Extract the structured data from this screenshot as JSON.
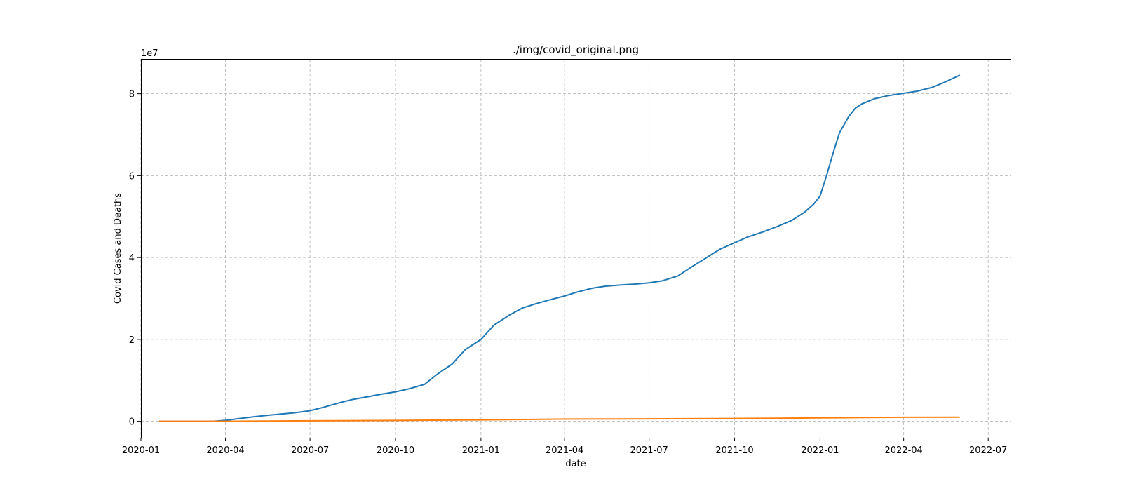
{
  "figure": {
    "title": "./img/covid_original.png",
    "offset_label": "1e7"
  },
  "chart_data": {
    "type": "line",
    "title": "./img/covid_original.png",
    "xlabel": "date",
    "ylabel": "Covid Cases and Deaths",
    "y_scale_factor": 10000000,
    "y_offset_text": "1e7",
    "xlim": [
      "2020-01-01",
      "2022-07-25"
    ],
    "ylim": [
      -4000000,
      88500000
    ],
    "grid": true,
    "grid_style": "dashed",
    "x_ticks": [
      "2020-01",
      "2020-04",
      "2020-07",
      "2020-10",
      "2021-01",
      "2021-04",
      "2021-07",
      "2021-10",
      "2022-01",
      "2022-04",
      "2022-07"
    ],
    "y_ticks": [
      0,
      20000000,
      40000000,
      60000000,
      80000000
    ],
    "y_tick_labels": [
      "0",
      "2",
      "4",
      "6",
      "8"
    ],
    "series": [
      {
        "color": "#1f77b4",
        "points": [
          [
            "2020-01-21",
            0
          ],
          [
            "2020-03-01",
            100
          ],
          [
            "2020-03-20",
            20000
          ],
          [
            "2020-04-01",
            250000
          ],
          [
            "2020-04-15",
            650000
          ],
          [
            "2020-05-01",
            1100000
          ],
          [
            "2020-05-15",
            1450000
          ],
          [
            "2020-06-01",
            1800000
          ],
          [
            "2020-06-15",
            2100000
          ],
          [
            "2020-07-01",
            2600000
          ],
          [
            "2020-07-15",
            3400000
          ],
          [
            "2020-08-01",
            4500000
          ],
          [
            "2020-08-15",
            5300000
          ],
          [
            "2020-09-01",
            6000000
          ],
          [
            "2020-09-15",
            6600000
          ],
          [
            "2020-10-01",
            7200000
          ],
          [
            "2020-10-15",
            7900000
          ],
          [
            "2020-11-01",
            9000000
          ],
          [
            "2020-11-15",
            11500000
          ],
          [
            "2020-12-01",
            14000000
          ],
          [
            "2020-12-15",
            17500000
          ],
          [
            "2021-01-01",
            20000000
          ],
          [
            "2021-01-15",
            23500000
          ],
          [
            "2021-02-01",
            26000000
          ],
          [
            "2021-02-15",
            27700000
          ],
          [
            "2021-03-01",
            28700000
          ],
          [
            "2021-03-15",
            29600000
          ],
          [
            "2021-04-01",
            30600000
          ],
          [
            "2021-04-15",
            31600000
          ],
          [
            "2021-05-01",
            32500000
          ],
          [
            "2021-05-15",
            33000000
          ],
          [
            "2021-06-01",
            33300000
          ],
          [
            "2021-06-15",
            33500000
          ],
          [
            "2021-07-01",
            33800000
          ],
          [
            "2021-07-15",
            34300000
          ],
          [
            "2021-08-01",
            35500000
          ],
          [
            "2021-08-15",
            37600000
          ],
          [
            "2021-09-01",
            40000000
          ],
          [
            "2021-09-15",
            42000000
          ],
          [
            "2021-10-01",
            43600000
          ],
          [
            "2021-10-15",
            45000000
          ],
          [
            "2021-11-01",
            46300000
          ],
          [
            "2021-11-15",
            47500000
          ],
          [
            "2021-12-01",
            49000000
          ],
          [
            "2021-12-15",
            51000000
          ],
          [
            "2021-12-25",
            53000000
          ],
          [
            "2022-01-01",
            55000000
          ],
          [
            "2022-01-08",
            60000000
          ],
          [
            "2022-01-15",
            65500000
          ],
          [
            "2022-01-22",
            70500000
          ],
          [
            "2022-02-01",
            74500000
          ],
          [
            "2022-02-08",
            76500000
          ],
          [
            "2022-02-15",
            77500000
          ],
          [
            "2022-03-01",
            78800000
          ],
          [
            "2022-03-15",
            79500000
          ],
          [
            "2022-04-01",
            80100000
          ],
          [
            "2022-04-15",
            80600000
          ],
          [
            "2022-05-01",
            81500000
          ],
          [
            "2022-05-15",
            82800000
          ],
          [
            "2022-05-31",
            84500000
          ]
        ]
      },
      {
        "color": "#ff7f0e",
        "points": [
          [
            "2020-01-21",
            0
          ],
          [
            "2020-04-01",
            5000
          ],
          [
            "2020-07-01",
            130000
          ],
          [
            "2020-10-01",
            210000
          ],
          [
            "2021-01-01",
            350000
          ],
          [
            "2021-04-01",
            555000
          ],
          [
            "2021-07-01",
            605000
          ],
          [
            "2021-10-01",
            700000
          ],
          [
            "2022-01-01",
            830000
          ],
          [
            "2022-04-01",
            980000
          ],
          [
            "2022-05-31",
            1005000
          ]
        ]
      }
    ]
  }
}
